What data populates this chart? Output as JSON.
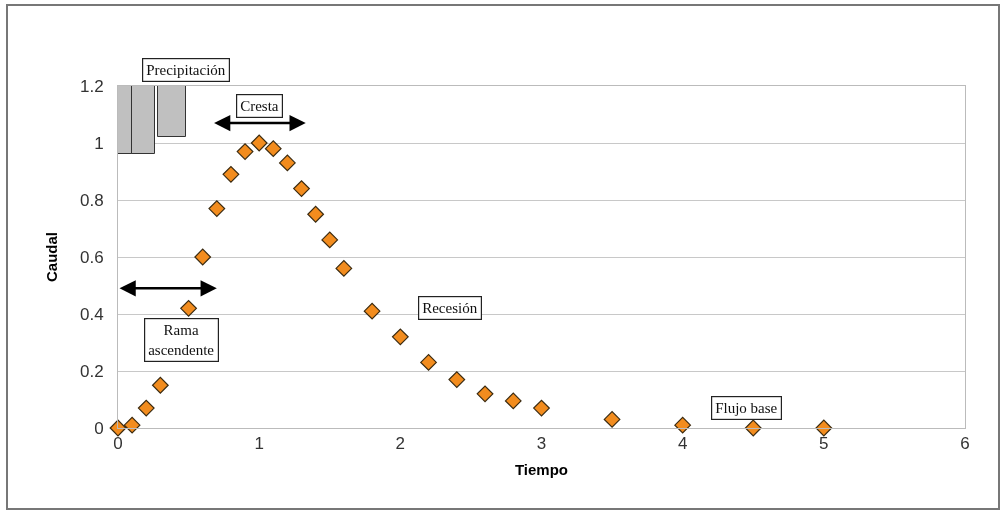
{
  "chart_data": {
    "type": "scatter",
    "xlabel": "Tiempo",
    "ylabel": "Caudal",
    "xlim": [
      0,
      6
    ],
    "xticks": [
      0,
      1,
      2,
      3,
      4,
      5,
      6
    ],
    "ylim": [
      0,
      1.2
    ],
    "yticks": [
      0,
      0.2,
      0.4,
      0.6,
      0.8,
      1,
      1.2
    ],
    "grid": "y",
    "marker": "diamond",
    "series": [
      {
        "type": "bar",
        "color": "#c0c0c0",
        "x": [
          0.05,
          0.18,
          0.38
        ],
        "base": [
          1.2,
          1.2,
          1.2
        ],
        "values": [
          -0.24,
          -0.24,
          -0.18
        ]
      },
      {
        "color": "#f28c1e",
        "x": [
          0,
          0.1,
          0.2,
          0.3,
          0.5,
          0.6,
          0.7,
          0.8,
          0.9,
          1.0,
          1.1,
          1.2,
          1.3,
          1.4,
          1.5,
          1.6,
          1.8,
          2.0,
          2.2,
          2.4,
          2.6,
          2.8,
          3.0,
          3.5,
          4.0,
          4.5,
          5.0
        ],
        "values": [
          0,
          0.01,
          0.07,
          0.15,
          0.42,
          0.6,
          0.77,
          0.89,
          0.97,
          1.0,
          0.98,
          0.93,
          0.84,
          0.75,
          0.66,
          0.56,
          0.41,
          0.32,
          0.23,
          0.17,
          0.12,
          0.095,
          0.07,
          0.03,
          0.01,
          0,
          0
        ]
      }
    ],
    "annotations": [
      "Precipitación",
      "Cresta",
      "Rama ascendente",
      "Recesión",
      "Flujo base"
    ]
  }
}
